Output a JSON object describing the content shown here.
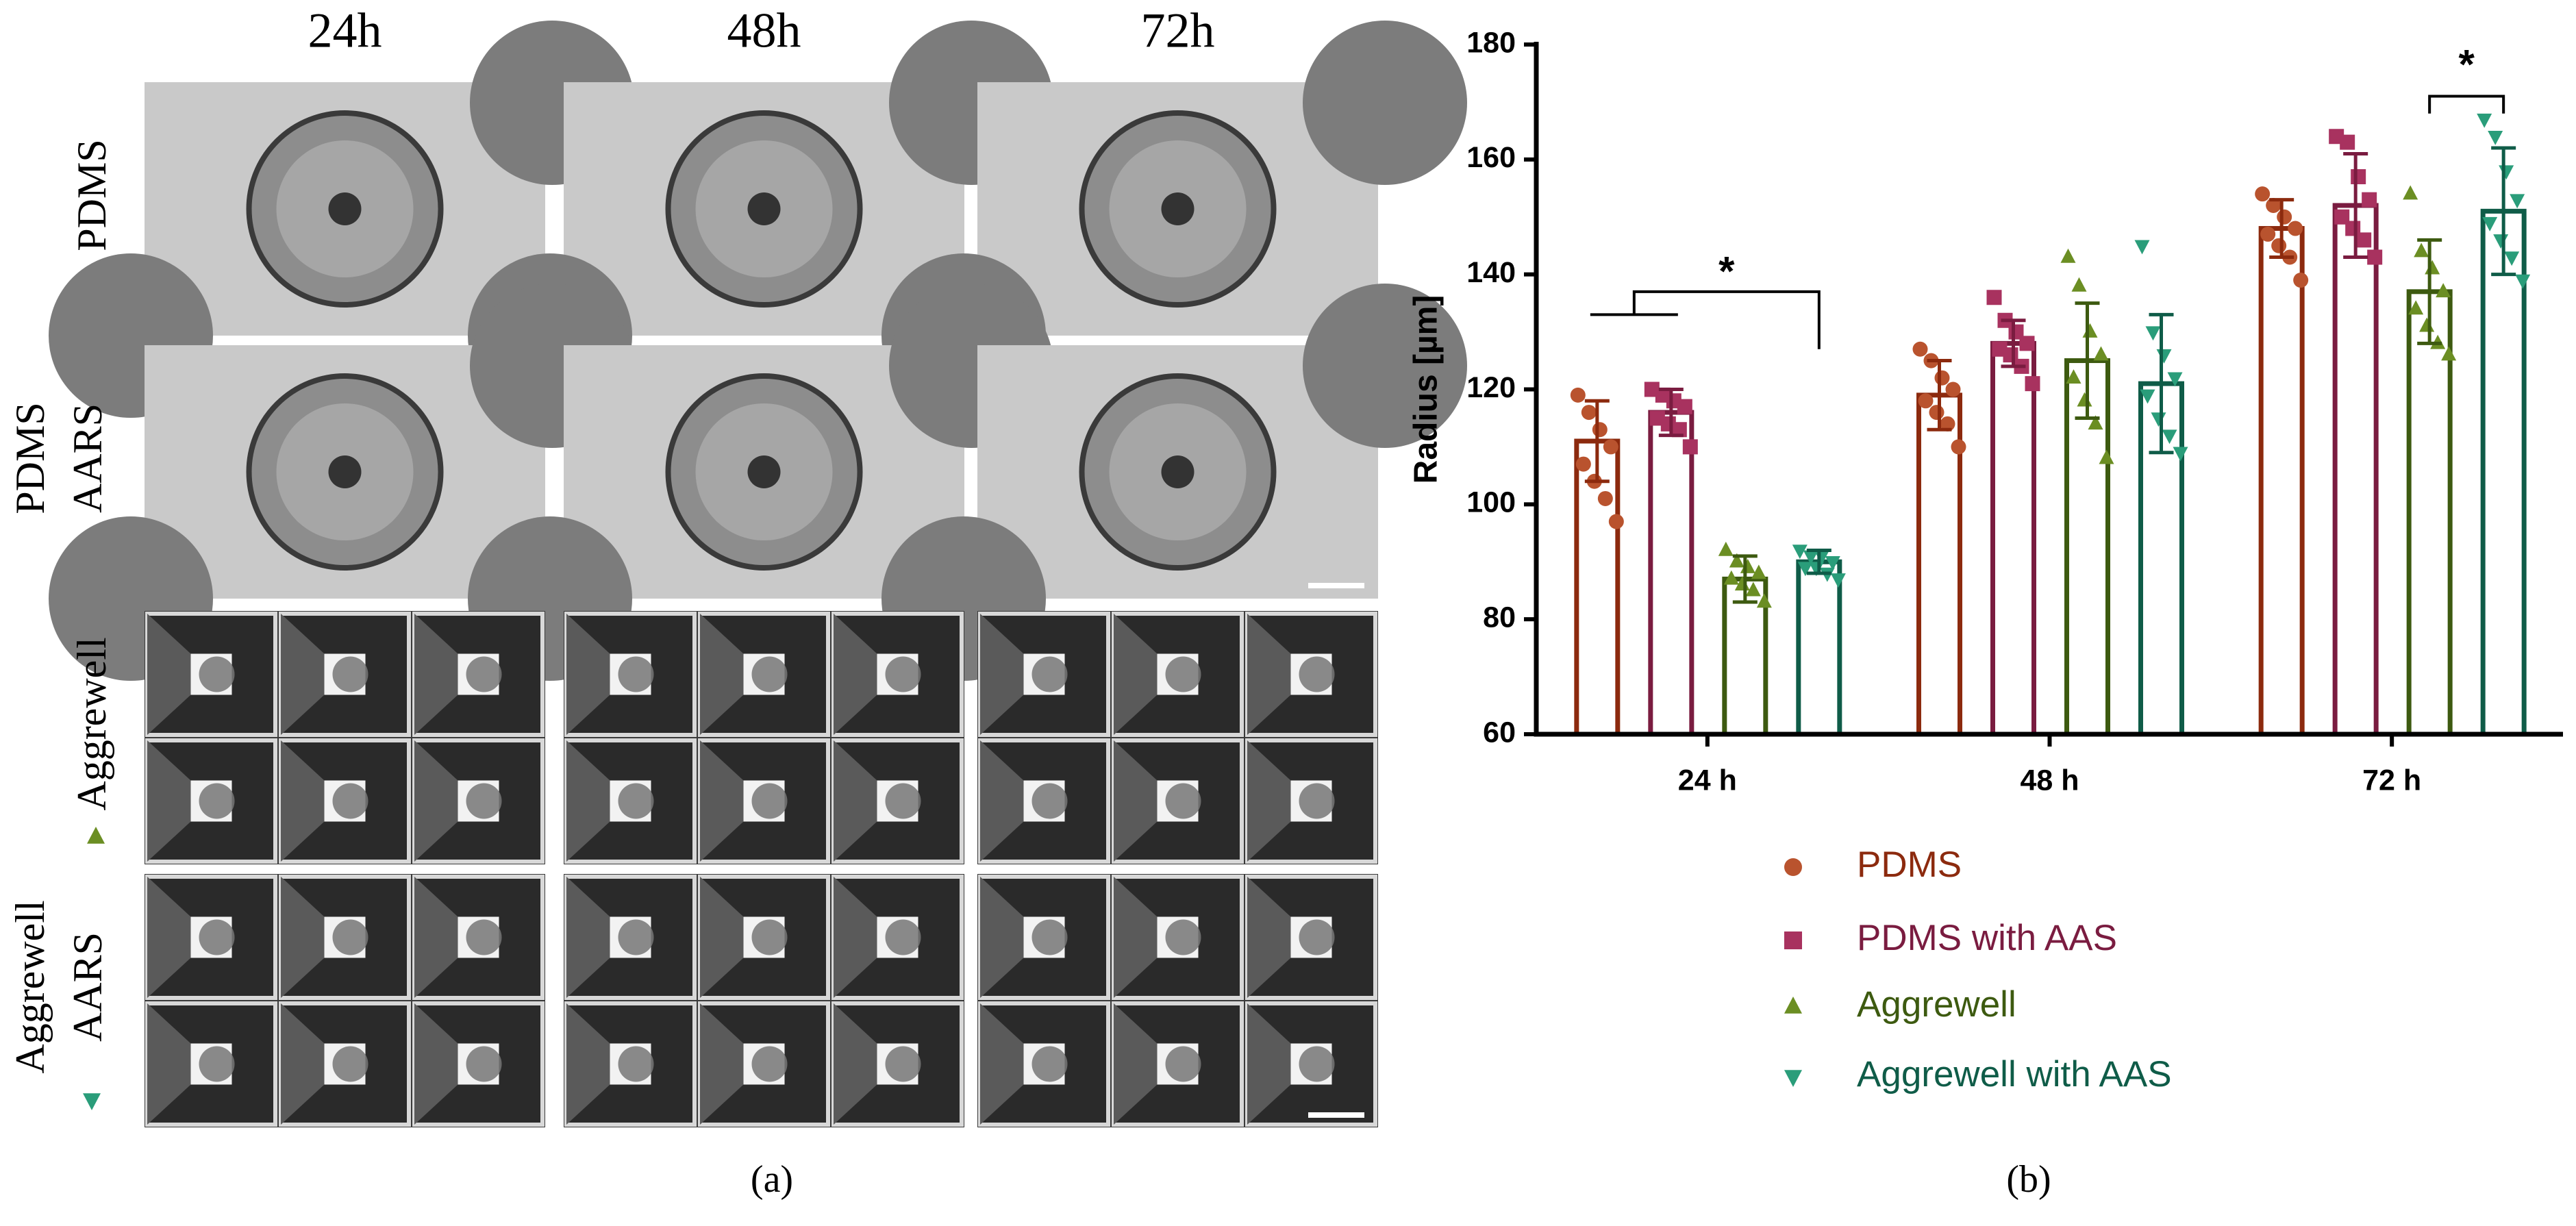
{
  "figure": {
    "panel_a": {
      "columns": [
        "24h",
        "48h",
        "72h"
      ],
      "rows": [
        [
          "PDMS"
        ],
        [
          "PDMS",
          "AARS"
        ],
        [
          "Aggrewell"
        ],
        [
          "Aggrewell",
          "AARS"
        ]
      ]
    },
    "panel_labels": [
      "(a)",
      "(b)"
    ]
  },
  "chart_data": {
    "type": "bar",
    "categories": [
      "24 h",
      "48 h",
      "72 h"
    ],
    "y_label": "Radius [µm]",
    "ylim": [
      60,
      180
    ],
    "yticks": [
      60,
      80,
      100,
      120,
      140,
      160,
      180
    ],
    "annotations": [
      "*",
      "*"
    ],
    "series": [
      {
        "name": "PDMS",
        "color": "#b9532e",
        "edge_color": "#8c2a0e",
        "marker": "circle",
        "values": [
          111,
          119,
          148
        ],
        "errors": [
          7,
          6,
          5
        ],
        "points": [
          [
            119,
            116,
            113,
            110,
            107,
            104,
            101,
            97
          ],
          [
            127,
            125,
            122,
            120,
            118,
            116,
            114,
            110
          ],
          [
            154,
            152,
            150,
            148,
            147,
            145,
            143,
            139
          ]
        ]
      },
      {
        "name": "PDMS with AAS",
        "color": "#a8325f",
        "edge_color": "#7a1c40",
        "marker": "square",
        "values": [
          116,
          128,
          152
        ],
        "errors": [
          4,
          4,
          9
        ],
        "points": [
          [
            120,
            119,
            118,
            117,
            115,
            114,
            113,
            110
          ],
          [
            136,
            132,
            130,
            128,
            127,
            126,
            124,
            121
          ],
          [
            164,
            163,
            157,
            153,
            150,
            148,
            146,
            143
          ]
        ]
      },
      {
        "name": "Aggrewell",
        "color": "#6b8e23",
        "edge_color": "#3d5a10",
        "marker": "triangle-up",
        "values": [
          87,
          125,
          137
        ],
        "errors": [
          4,
          10,
          9
        ],
        "points": [
          [
            92,
            90,
            89,
            88,
            87,
            86,
            85,
            83
          ],
          [
            143,
            138,
            130,
            126,
            122,
            118,
            114,
            108
          ],
          [
            154,
            144,
            141,
            137,
            134,
            131,
            128,
            126
          ]
        ]
      },
      {
        "name": "Aggrewell with AAS",
        "color": "#2a9d7a",
        "edge_color": "#0f5c48",
        "marker": "triangle-down",
        "values": [
          90,
          121,
          151
        ],
        "errors": [
          2,
          12,
          11
        ],
        "points": [
          [
            92,
            91,
            91,
            90,
            89,
            89,
            88,
            87
          ],
          [
            145,
            130,
            126,
            122,
            119,
            115,
            112,
            109
          ],
          [
            167,
            164,
            158,
            153,
            149,
            146,
            143,
            139
          ]
        ]
      }
    ]
  }
}
